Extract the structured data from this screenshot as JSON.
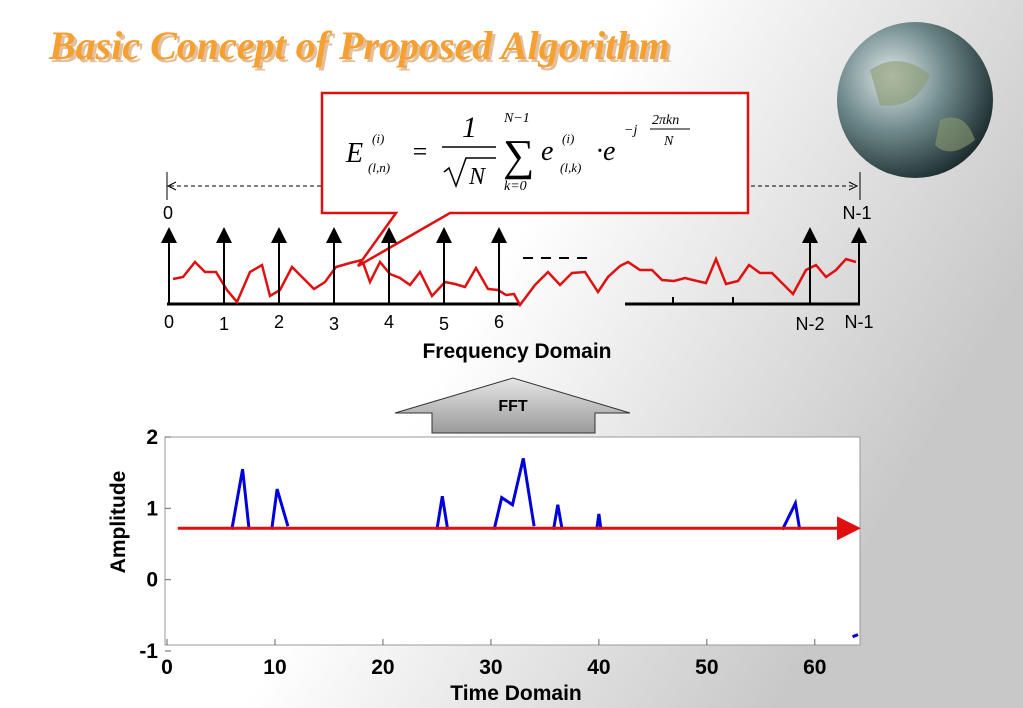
{
  "header": {
    "title": "Basic Concept of Proposed Algorithm"
  },
  "formula": {
    "E": "E",
    "sup1": "(i)",
    "sub1": "(l,n)",
    "eq": "=",
    "num": "1",
    "root": "N",
    "sum_top": "N−1",
    "sum": "∑",
    "sum_bottom": "k=0",
    "e": "e",
    "sup2": "(i)",
    "sub2": "(l,k)",
    "dot_e": "·e",
    "exp_j": "−j",
    "exp_num": "2πkn",
    "exp_den": "N"
  },
  "frequency": {
    "range_start": "0",
    "range_end": "N-1",
    "bins": [
      "0",
      "1",
      "2",
      "3",
      "4",
      "5",
      "6",
      "N-2",
      "N-1"
    ],
    "label": "Frequency Domain"
  },
  "transform": {
    "label": "FFT"
  },
  "chart_data": {
    "type": "line",
    "x_label": "Time Domain",
    "y_label": "Amplitude",
    "xlim": [
      0,
      64
    ],
    "ylim": [
      -1,
      2
    ],
    "xticks": [
      0,
      10,
      20,
      30,
      40,
      50,
      60
    ],
    "yticks": [
      -1,
      0,
      1,
      2
    ],
    "series": [
      {
        "color": "#0000dd",
        "x": [
          6,
          7,
          7.6,
          null,
          9.7,
          10.2,
          11.2,
          null,
          25,
          25.5,
          26,
          null,
          30.3,
          31,
          32,
          33,
          34,
          null,
          35.8,
          36.2,
          36.6,
          null,
          39.8,
          40,
          40.2,
          null,
          57,
          58.2,
          58.6,
          null,
          63.5,
          64
        ],
        "values": [
          0.7,
          1.55,
          0.7,
          null,
          0.7,
          1.27,
          0.75,
          null,
          0.7,
          1.17,
          0.7,
          null,
          0.7,
          1.15,
          1.05,
          1.7,
          0.75,
          null,
          0.7,
          1.05,
          0.7,
          null,
          0.7,
          0.92,
          0.7,
          null,
          0.7,
          1.07,
          0.7,
          null,
          -0.8,
          -0.77
        ]
      },
      {
        "color": "#e01010",
        "arrow": true,
        "x": [
          1,
          64
        ],
        "values": [
          0.72,
          0.72
        ]
      }
    ]
  }
}
